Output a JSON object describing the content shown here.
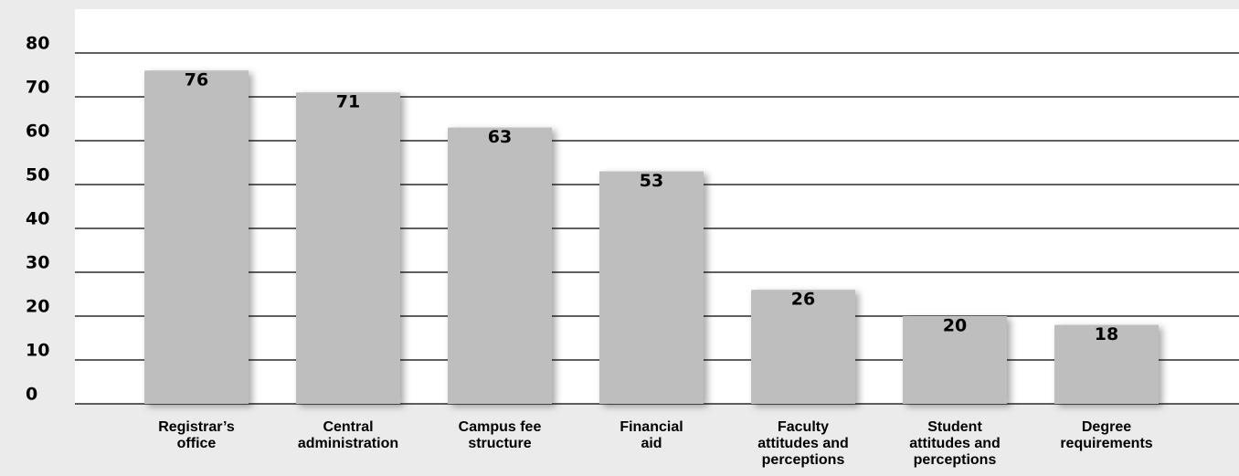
{
  "chart_data": {
    "type": "bar",
    "categories": [
      "Registrar’s\noffice",
      "Central\nadministration",
      "Campus fee\nstructure",
      "Financial\naid",
      "Faculty\nattitudes and\nperceptions",
      "Student\nattitudes and\nperceptions",
      "Degree\nrequirements"
    ],
    "values": [
      76,
      71,
      63,
      53,
      26,
      20,
      18
    ],
    "color": "#bebebe",
    "ylim": [
      0,
      90
    ],
    "yticks": [
      0,
      10,
      20,
      30,
      40,
      50,
      60,
      70,
      80
    ],
    "grid": true
  }
}
